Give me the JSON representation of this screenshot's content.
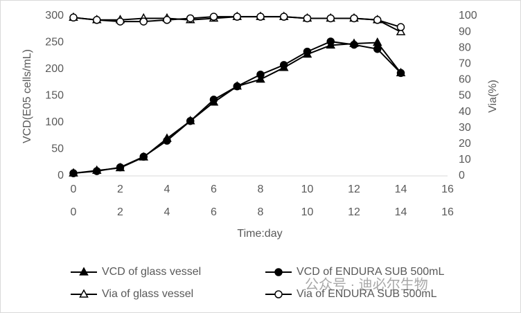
{
  "chart_data": {
    "type": "line",
    "x": [
      0,
      1,
      2,
      3,
      4,
      5,
      6,
      7,
      8,
      9,
      10,
      11,
      12,
      13,
      14
    ],
    "xlim": [
      0,
      16
    ],
    "xticks": [
      0,
      2,
      4,
      6,
      8,
      10,
      12,
      14,
      16
    ],
    "x2ticks": [
      0,
      2,
      4,
      6,
      8,
      10,
      12,
      14,
      16
    ],
    "xlabel": "Time:day",
    "ylabel": "VCD(E05 cells/mL)",
    "ylim": [
      0,
      300
    ],
    "yticks": [
      0,
      50,
      100,
      150,
      200,
      250,
      300
    ],
    "y2label": "Via(%)",
    "y2lim": [
      0,
      100
    ],
    "y2ticks": [
      0,
      10,
      20,
      30,
      40,
      50,
      60,
      70,
      80,
      90,
      100
    ],
    "grid": false,
    "legend": "bottom",
    "watermark": "公众号 · 迪必尔生物",
    "series": [
      {
        "name": "VCD of glass vessel",
        "color": "#000000",
        "marker": "triangle",
        "filled": true,
        "values": [
          5,
          10,
          15,
          35,
          70,
          103,
          138,
          168,
          181,
          203,
          228,
          245,
          248,
          250,
          193
        ]
      },
      {
        "name": "VCD of ENDURA SUB 500mL",
        "color": "#000000",
        "marker": "circle",
        "filled": true,
        "values": [
          5,
          9,
          16,
          36,
          66,
          103,
          143,
          168,
          190,
          208,
          233,
          252,
          246,
          238,
          193
        ]
      },
      {
        "name": "Via of glass vessel",
        "color": "#000000",
        "marker": "triangle",
        "filled": false,
        "axis": "y2",
        "values": [
          99,
          97.5,
          97.5,
          98.5,
          98.5,
          97.5,
          98.5,
          99.5,
          99.5,
          99.5,
          98.5,
          98.5,
          98.5,
          97.5,
          90
        ]
      },
      {
        "name": "Via of ENDURA SUB 500mL",
        "color": "#000000",
        "marker": "circle",
        "filled": false,
        "axis": "y2",
        "values": [
          99,
          97.5,
          96.5,
          96.5,
          97.5,
          98.5,
          99.5,
          99.5,
          99.5,
          99.5,
          98.5,
          98.5,
          98.5,
          97.5,
          93
        ]
      }
    ]
  }
}
